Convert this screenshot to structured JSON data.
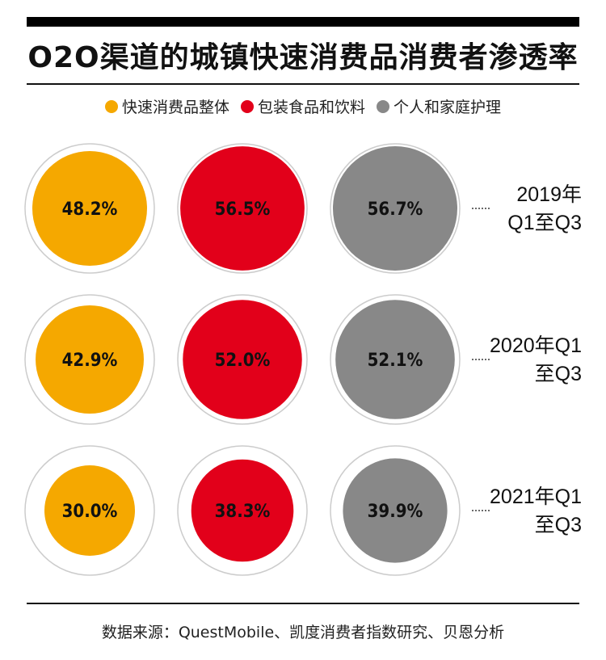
{
  "title": "O2O渠道的城镇快速消费品消费者渗透率",
  "source": "数据来源：QuestMobile、凯度消费者指数研究、贝恩分析",
  "colors": {
    "fmcg": "#f5a800",
    "food": "#e2001a",
    "personal": "#888888",
    "ring": "#cccccc"
  },
  "chart_data": {
    "type": "bubble",
    "unit": "%",
    "series": [
      {
        "name": "快速消费品整体",
        "color_key": "fmcg"
      },
      {
        "name": "包装食品和饮料",
        "color_key": "food"
      },
      {
        "name": "个人和家庭护理",
        "color_key": "personal"
      }
    ],
    "rows": [
      {
        "label_lines": [
          "2019年",
          "Q1至Q3"
        ],
        "values": [
          48.2,
          56.5,
          56.7
        ]
      },
      {
        "label_lines": [
          "2020年Q1",
          "至Q3"
        ],
        "values": [
          42.9,
          52.0,
          52.1
        ]
      },
      {
        "label_lines": [
          "2021年Q1",
          "至Q3"
        ],
        "values": [
          30.0,
          38.3,
          39.9
        ]
      }
    ],
    "legend_position": "top",
    "value_labels": [
      "48.2%",
      "56.5%",
      "56.7%",
      "42.9%",
      "52.0%",
      "52.1%",
      "30.0%",
      "38.3%",
      "39.9%"
    ]
  }
}
